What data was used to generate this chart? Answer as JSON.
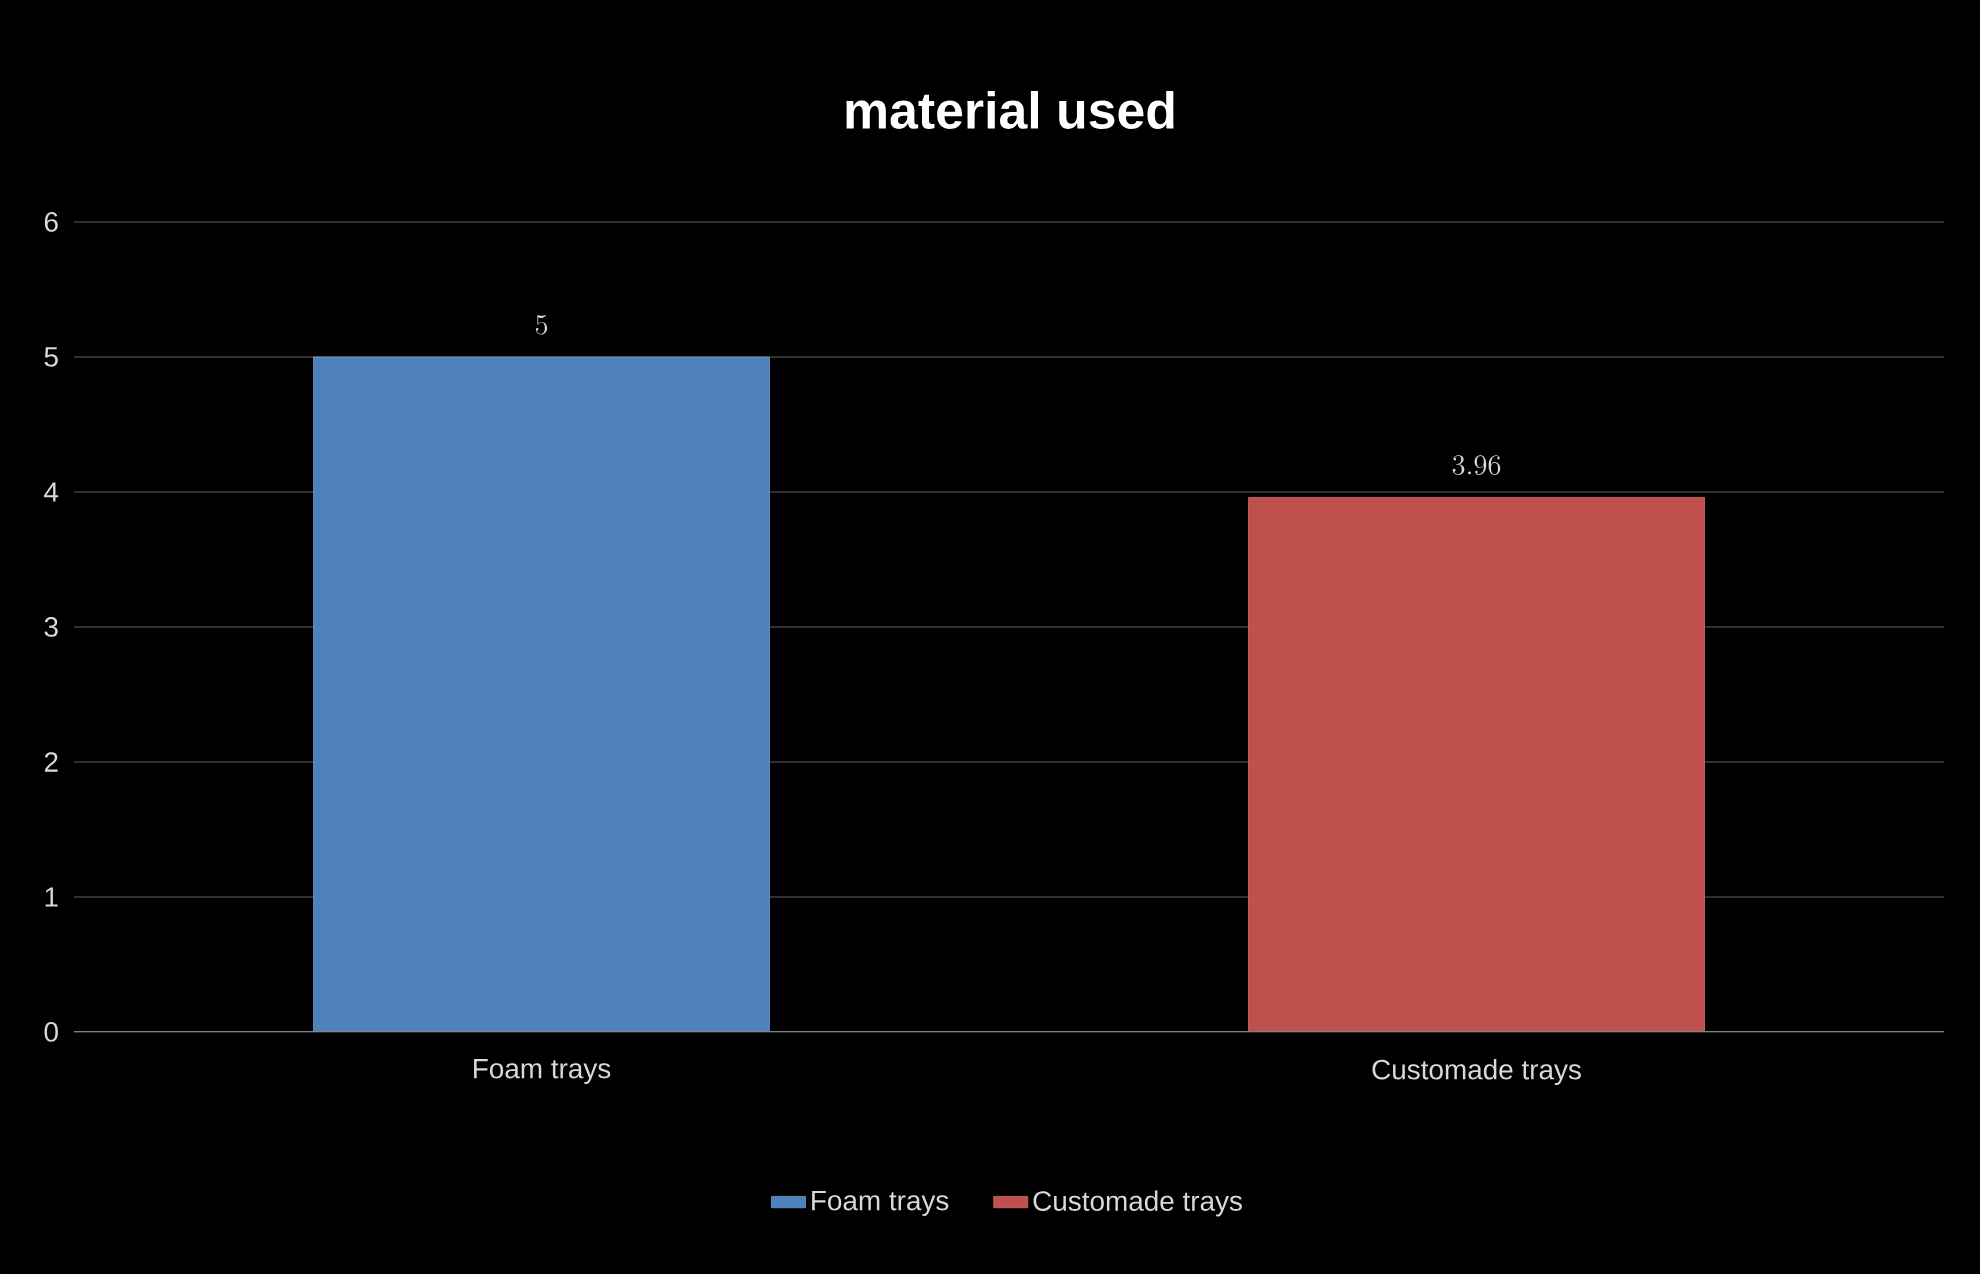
{
  "chart_data": {
    "type": "bar",
    "title": "material used",
    "categories": [
      "Foam trays",
      "Customade trays"
    ],
    "series": [
      {
        "name": "Foam trays",
        "color": "#4f81bd",
        "values": [
          5,
          null
        ]
      },
      {
        "name": "Customade trays",
        "color": "#c0504d",
        "values": [
          null,
          3.96
        ]
      }
    ],
    "ylim": [
      0,
      6
    ],
    "yticks": [
      0,
      1,
      2,
      3,
      4,
      5,
      6
    ],
    "grid": "y",
    "legend": "bottom",
    "data_labels": true
  }
}
